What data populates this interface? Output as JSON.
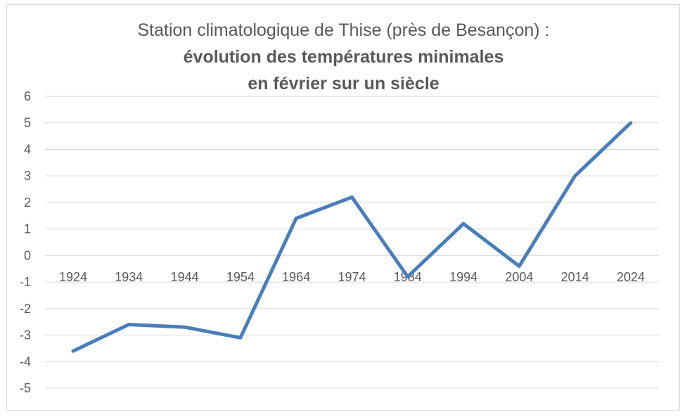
{
  "chart_data": {
    "type": "line",
    "title_line1": "Station climatologique de Thise (près de Besançon) :",
    "title_line2": "évolution des températures minimales",
    "title_line3": "en février sur un siècle",
    "xlabel": "",
    "ylabel": "",
    "ylim": [
      -5,
      6
    ],
    "yticks": [
      "6",
      "5",
      "4",
      "3",
      "2",
      "1",
      "0",
      "-1",
      "-2",
      "-3",
      "-4",
      "-5"
    ],
    "categories": [
      "1924",
      "1934",
      "1944",
      "1954",
      "1964",
      "1974",
      "1984",
      "1994",
      "2004",
      "2014",
      "2024"
    ],
    "series": [
      {
        "values": [
          -3.6,
          -2.6,
          -2.7,
          -3.1,
          1.4,
          2.2,
          -0.8,
          1.2,
          -0.4,
          3.0,
          5.0
        ]
      }
    ],
    "grid": true,
    "line_color": "#4a7ebb",
    "grid_color": "#d9d9d9",
    "text_color": "#595959"
  }
}
